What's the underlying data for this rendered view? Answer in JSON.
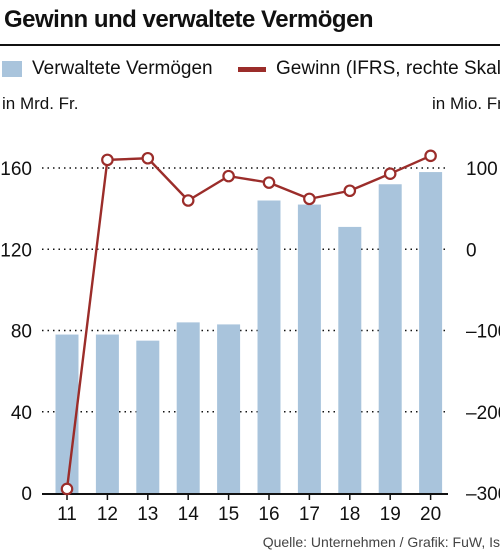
{
  "chart_data": {
    "type": "bar+line",
    "title": "Gewinn und verwaltete Vermögen",
    "categories": [
      "11",
      "12",
      "13",
      "14",
      "15",
      "16",
      "17",
      "18",
      "19",
      "20"
    ],
    "series": [
      {
        "name": "Verwaltete Vermögen",
        "type": "bar",
        "axis": "left",
        "values": [
          78,
          78,
          75,
          84,
          83,
          144,
          142,
          131,
          152,
          158
        ],
        "color": "#a9c4dc"
      },
      {
        "name": "Gewinn (IFRS, rechte Skala)",
        "type": "line",
        "axis": "right",
        "values": [
          -295,
          110,
          112,
          60,
          90,
          82,
          62,
          72,
          93,
          115
        ],
        "color": "#9b2d2a"
      }
    ],
    "left_axis": {
      "unit": "in Mrd. Fr.",
      "ticks": [
        "0",
        "40",
        "80",
        "120",
        "160"
      ],
      "ylim": [
        0,
        160
      ]
    },
    "right_axis": {
      "unit": "in Mio. Fr.",
      "ticks": [
        "100",
        "0",
        "–100",
        "–200",
        "–300"
      ],
      "ylim": [
        -300,
        100
      ]
    },
    "grid": "dotted at major ticks",
    "legend_position": "top",
    "source": "Quelle: Unternehmen / Grafik: FuW, Is"
  }
}
